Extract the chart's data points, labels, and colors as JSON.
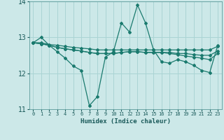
{
  "xlabel": "Humidex (Indice chaleur)",
  "background_color": "#cce8e8",
  "grid_color": "#aad4d4",
  "line_color": "#1a7a6e",
  "xlim": [
    -0.5,
    23.5
  ],
  "ylim": [
    11,
    14
  ],
  "yticks": [
    11,
    12,
    13,
    14
  ],
  "xticks": [
    0,
    1,
    2,
    3,
    4,
    5,
    6,
    7,
    8,
    9,
    10,
    11,
    12,
    13,
    14,
    15,
    16,
    17,
    18,
    19,
    20,
    21,
    22,
    23
  ],
  "line1_x": [
    0,
    1,
    2,
    3,
    4,
    5,
    6,
    7,
    8,
    9,
    10,
    11,
    12,
    13,
    14,
    15,
    16,
    17,
    18,
    19,
    20,
    21,
    22,
    23
  ],
  "line1_y": [
    12.85,
    12.85,
    12.8,
    12.78,
    12.75,
    12.72,
    12.7,
    12.68,
    12.65,
    12.65,
    12.65,
    12.65,
    12.65,
    12.65,
    12.65,
    12.65,
    12.65,
    12.65,
    12.65,
    12.65,
    12.65,
    12.65,
    12.65,
    12.75
  ],
  "line2_x": [
    0,
    1,
    2,
    3,
    4,
    5,
    6,
    7,
    8,
    9,
    10,
    11,
    12,
    13,
    14,
    15,
    16,
    17,
    18,
    19,
    20,
    21,
    22,
    23
  ],
  "line2_y": [
    12.85,
    12.82,
    12.78,
    12.72,
    12.68,
    12.65,
    12.62,
    12.58,
    12.55,
    12.55,
    12.55,
    12.58,
    12.6,
    12.6,
    12.58,
    12.58,
    12.58,
    12.58,
    12.55,
    12.55,
    12.52,
    12.5,
    12.5,
    12.62
  ],
  "line3_x": [
    0,
    1,
    2,
    3,
    4,
    5,
    6,
    7,
    8,
    9,
    10,
    11,
    12,
    13,
    14,
    15,
    16,
    17,
    18,
    19,
    20,
    21,
    22,
    23
  ],
  "line3_y": [
    12.85,
    12.82,
    12.78,
    12.72,
    12.68,
    12.65,
    12.62,
    12.58,
    12.55,
    12.55,
    12.55,
    12.58,
    12.6,
    12.6,
    12.58,
    12.58,
    12.58,
    12.55,
    12.52,
    12.48,
    12.45,
    12.42,
    12.38,
    12.55
  ],
  "line4_x": [
    0,
    1,
    2,
    3,
    4,
    5,
    6,
    7,
    8,
    9,
    10,
    11,
    12,
    13,
    14,
    15,
    16,
    17,
    18,
    19,
    20,
    21,
    22,
    23
  ],
  "line4_y": [
    12.85,
    13.0,
    12.78,
    12.6,
    12.42,
    12.2,
    12.08,
    11.1,
    11.35,
    12.45,
    12.6,
    13.4,
    13.15,
    13.9,
    13.4,
    12.65,
    12.32,
    12.28,
    12.38,
    12.32,
    12.22,
    12.08,
    12.02,
    12.78
  ],
  "markersize": 2.0
}
